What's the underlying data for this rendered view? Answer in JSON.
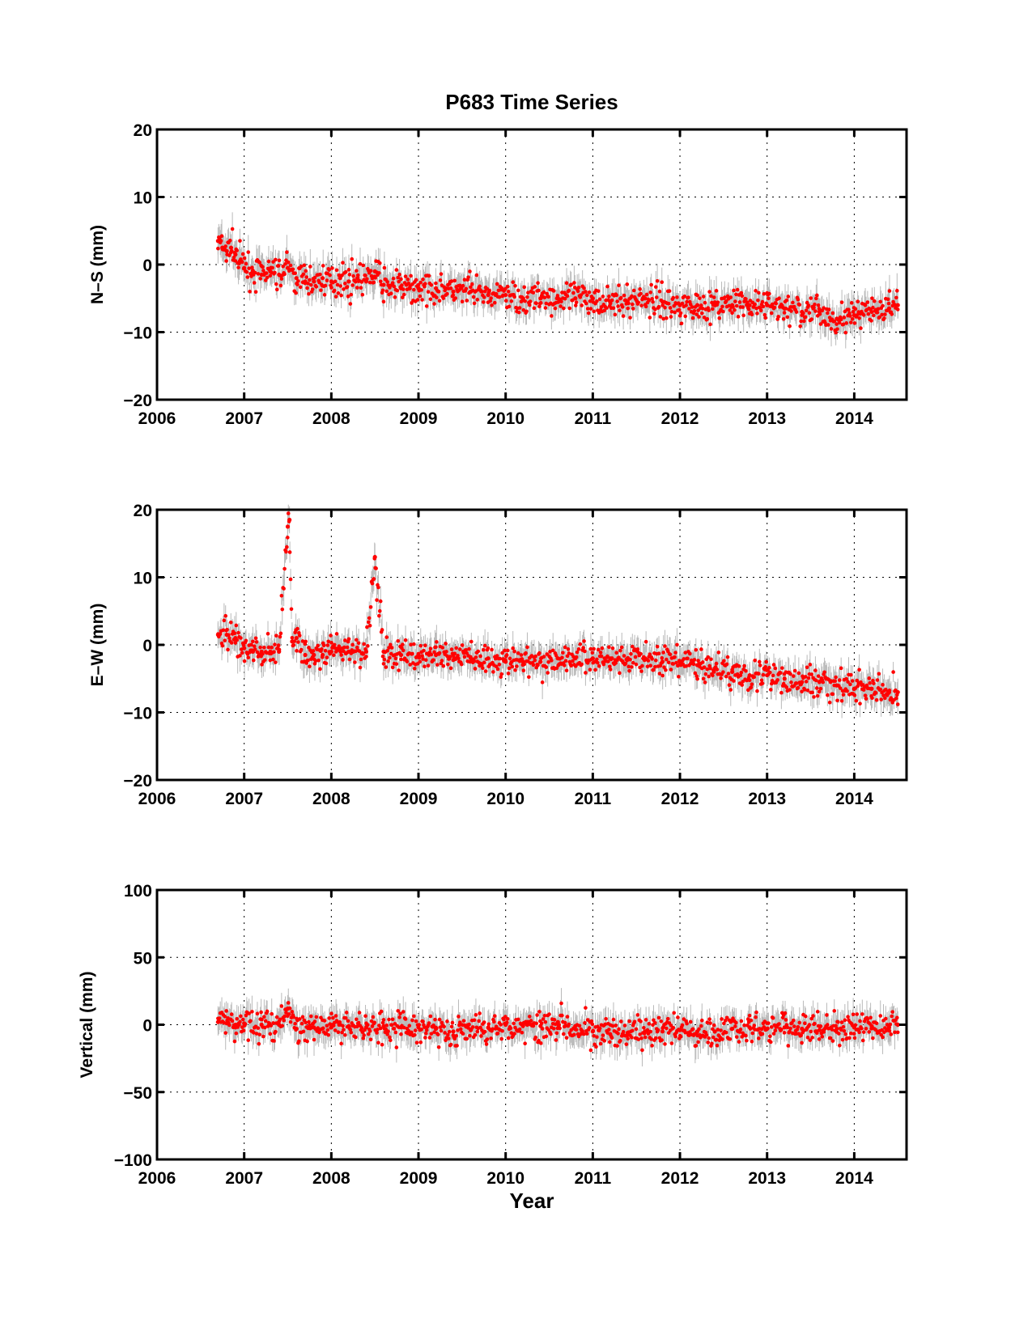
{
  "figure": {
    "title": "P683 Time Series",
    "xlabel": "Year",
    "point_color": "#ff0000",
    "error_bar_color": "#b9b9b9"
  },
  "chart_data": [
    {
      "type": "scatter",
      "ylabel": "N–S (mm)",
      "xlim": [
        2006,
        2014.6
      ],
      "ylim": [
        -20,
        20
      ],
      "xticks": [
        2006,
        2007,
        2008,
        2009,
        2010,
        2011,
        2012,
        2013,
        2014
      ],
      "yticks": [
        -20,
        -10,
        0,
        10,
        20
      ],
      "ytick_labels": [
        "−20",
        "−10",
        "0",
        "10",
        "20"
      ],
      "grid": true,
      "series": [
        {
          "x": [
            2006.7,
            2006.75,
            2006.8,
            2006.85,
            2006.9,
            2006.95,
            2007.0,
            2007.1,
            2007.2,
            2007.3,
            2007.4,
            2007.5,
            2007.6,
            2007.7,
            2007.8,
            2007.9,
            2008.0,
            2008.1,
            2008.2,
            2008.3,
            2008.4,
            2008.5,
            2008.6,
            2008.7,
            2008.8,
            2008.9,
            2009.0,
            2009.2,
            2009.4,
            2009.6,
            2009.8,
            2010.0,
            2010.2,
            2010.4,
            2010.6,
            2010.8,
            2011.0,
            2011.2,
            2011.4,
            2011.6,
            2011.8,
            2012.0,
            2012.2,
            2012.4,
            2012.6,
            2012.8,
            2013.0,
            2013.2,
            2013.4,
            2013.6,
            2013.8,
            2014.0,
            2014.2,
            2014.4,
            2014.5
          ],
          "y": [
            3.5,
            2.5,
            2.0,
            2.5,
            1.5,
            0.5,
            -0.5,
            -1.0,
            -1.5,
            -1.0,
            -1.5,
            -0.5,
            -2.0,
            -2.5,
            -2.5,
            -2.0,
            -2.5,
            -2.0,
            -2.5,
            -2.0,
            -2.5,
            -1.0,
            -3.0,
            -3.0,
            -3.5,
            -3.5,
            -3.5,
            -3.5,
            -4.0,
            -4.0,
            -4.5,
            -4.5,
            -5.0,
            -5.0,
            -5.0,
            -5.0,
            -5.0,
            -5.5,
            -5.5,
            -5.0,
            -5.5,
            -6.0,
            -6.0,
            -6.0,
            -6.0,
            -6.0,
            -6.0,
            -6.5,
            -7.0,
            -7.0,
            -8.0,
            -7.5,
            -7.0,
            -6.5,
            -6.0
          ]
        }
      ]
    },
    {
      "type": "scatter",
      "ylabel": "E–W (mm)",
      "xlim": [
        2006,
        2014.6
      ],
      "ylim": [
        -20,
        20
      ],
      "xticks": [
        2006,
        2007,
        2008,
        2009,
        2010,
        2011,
        2012,
        2013,
        2014
      ],
      "yticks": [
        -20,
        -10,
        0,
        10,
        20
      ],
      "ytick_labels": [
        "−20",
        "−10",
        "0",
        "10",
        "20"
      ],
      "grid": true,
      "series": [
        {
          "x": [
            2006.7,
            2006.8,
            2006.9,
            2007.0,
            2007.1,
            2007.2,
            2007.3,
            2007.4,
            2007.5,
            2007.52,
            2007.55,
            2007.6,
            2007.7,
            2007.8,
            2007.9,
            2008.0,
            2008.2,
            2008.4,
            2008.5,
            2008.6,
            2008.8,
            2009.0,
            2009.2,
            2009.4,
            2009.6,
            2009.8,
            2010.0,
            2010.2,
            2010.4,
            2010.6,
            2010.8,
            2011.0,
            2011.2,
            2011.4,
            2011.6,
            2011.8,
            2012.0,
            2012.2,
            2012.4,
            2012.6,
            2012.8,
            2013.0,
            2013.2,
            2013.4,
            2013.6,
            2013.8,
            2014.0,
            2014.2,
            2014.4,
            2014.5
          ],
          "y": [
            1.5,
            1.5,
            1.0,
            -0.5,
            -1.0,
            -1.0,
            -1.0,
            -1.0,
            17.5,
            18.5,
            0.5,
            1.0,
            -1.5,
            -1.5,
            -1.5,
            -1.0,
            -1.0,
            -1.0,
            13.0,
            -1.0,
            -1.5,
            -1.5,
            -1.5,
            -1.5,
            -2.0,
            -2.0,
            -2.5,
            -2.5,
            -2.5,
            -2.0,
            -2.0,
            -2.0,
            -2.0,
            -2.0,
            -2.0,
            -2.5,
            -2.5,
            -3.0,
            -3.5,
            -4.0,
            -4.5,
            -4.5,
            -5.0,
            -5.5,
            -5.5,
            -6.0,
            -6.5,
            -6.5,
            -7.0,
            -7.0
          ]
        }
      ]
    },
    {
      "type": "scatter",
      "ylabel": "Vertical (mm)",
      "xlim": [
        2006,
        2014.6
      ],
      "ylim": [
        -100,
        100
      ],
      "xticks": [
        2006,
        2007,
        2008,
        2009,
        2010,
        2011,
        2012,
        2013,
        2014
      ],
      "yticks": [
        -100,
        -50,
        0,
        50,
        100
      ],
      "ytick_labels": [
        "−100",
        "−50",
        "0",
        "50",
        "100"
      ],
      "grid": true,
      "series": [
        {
          "x": [
            2006.7,
            2006.8,
            2006.9,
            2007.0,
            2007.2,
            2007.4,
            2007.5,
            2007.6,
            2007.8,
            2008.0,
            2008.2,
            2008.4,
            2008.6,
            2008.8,
            2009.0,
            2009.2,
            2009.4,
            2009.6,
            2009.8,
            2010.0,
            2010.2,
            2010.4,
            2010.6,
            2010.8,
            2011.0,
            2011.2,
            2011.4,
            2011.6,
            2011.8,
            2012.0,
            2012.2,
            2012.4,
            2012.6,
            2012.8,
            2013.0,
            2013.2,
            2013.4,
            2013.6,
            2013.8,
            2014.0,
            2014.2,
            2014.4,
            2014.5
          ],
          "y": [
            2,
            1,
            0,
            1,
            0,
            0,
            12,
            -3,
            -2,
            -2,
            -1,
            -2,
            -1,
            -2,
            -2,
            -3,
            -5,
            -4,
            -2,
            0,
            -1,
            -1,
            2,
            -1,
            -5,
            -7,
            -6,
            -5,
            -5,
            -4,
            -5,
            -5,
            -3,
            -2,
            -3,
            -2,
            -3,
            -4,
            -3,
            -2,
            -1,
            -2,
            0
          ]
        }
      ]
    }
  ]
}
